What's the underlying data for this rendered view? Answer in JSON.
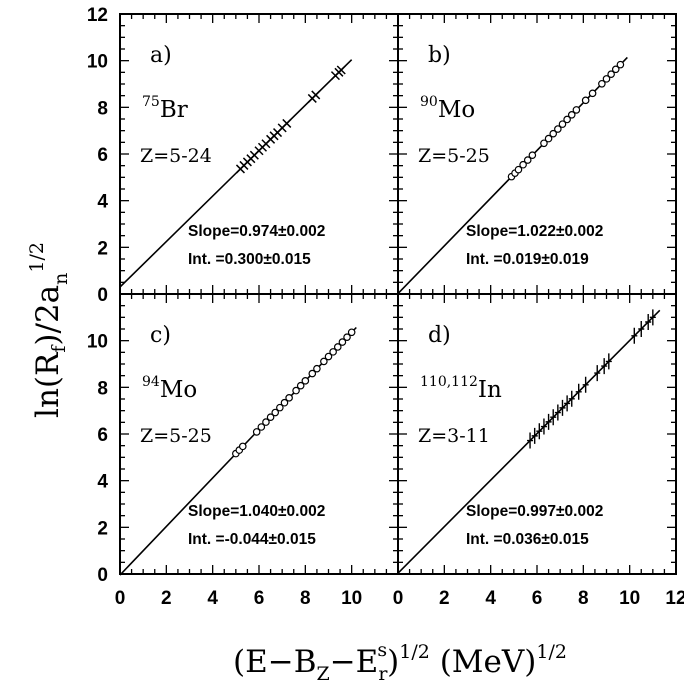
{
  "chart_data": {
    "type": "scatter",
    "layout": "2x2 panels sharing axes",
    "xlabel": "(E−B_Z−E_r^s)^1/2 (MeV)^1/2",
    "ylabel": "ln(R_f)/2a_n^1/2",
    "x_ticks": [
      "0",
      "2",
      "4",
      "6",
      "8",
      "10",
      "12"
    ],
    "y_ticks": [
      "0",
      "2",
      "4",
      "6",
      "8",
      "10",
      "12"
    ],
    "xlim": [
      0,
      12
    ],
    "ylim": [
      0,
      12
    ],
    "grid": false,
    "panels": [
      {
        "label": "a)",
        "nucleus_mass": "75",
        "nucleus_symbol": "Br",
        "z_range": "Z=5-24",
        "slope_text": "Slope=0.974±0.002",
        "int_text": "Int.  =0.300±0.015",
        "slope": 0.974,
        "intercept": 0.3,
        "line_x": [
          0,
          10.0
        ],
        "marker": "x",
        "points": [
          [
            5.2,
            5.36
          ],
          [
            5.35,
            5.51
          ],
          [
            5.5,
            5.66
          ],
          [
            5.65,
            5.8
          ],
          [
            5.8,
            5.95
          ],
          [
            6.0,
            6.14
          ],
          [
            6.15,
            6.29
          ],
          [
            6.3,
            6.44
          ],
          [
            6.5,
            6.63
          ],
          [
            6.65,
            6.78
          ],
          [
            6.8,
            6.92
          ],
          [
            7.0,
            7.12
          ],
          [
            7.2,
            7.31
          ],
          [
            8.3,
            8.38
          ],
          [
            8.45,
            8.53
          ],
          [
            9.3,
            9.36
          ],
          [
            9.45,
            9.5
          ],
          [
            9.55,
            9.6
          ]
        ]
      },
      {
        "label": "b)",
        "nucleus_mass": "90",
        "nucleus_symbol": "Mo",
        "z_range": "Z=5-25",
        "slope_text": "Slope=1.022±0.002",
        "int_text": "Int.  =0.019±0.019",
        "slope": 1.022,
        "intercept": 0.019,
        "line_x": [
          0,
          9.9
        ],
        "marker": "o",
        "points": [
          [
            4.9,
            5.03
          ],
          [
            5.05,
            5.18
          ],
          [
            5.2,
            5.33
          ],
          [
            5.4,
            5.54
          ],
          [
            5.6,
            5.74
          ],
          [
            5.8,
            5.95
          ],
          [
            6.3,
            6.46
          ],
          [
            6.5,
            6.66
          ],
          [
            6.7,
            6.87
          ],
          [
            6.9,
            7.07
          ],
          [
            7.1,
            7.28
          ],
          [
            7.3,
            7.48
          ],
          [
            7.5,
            7.68
          ],
          [
            7.7,
            7.89
          ],
          [
            8.1,
            8.3
          ],
          [
            8.4,
            8.6
          ],
          [
            8.8,
            9.01
          ],
          [
            9.0,
            9.22
          ],
          [
            9.2,
            9.42
          ],
          [
            9.4,
            9.63
          ],
          [
            9.6,
            9.83
          ]
        ]
      },
      {
        "label": "c)",
        "nucleus_mass": "94",
        "nucleus_symbol": "Mo",
        "z_range": "Z=5-25",
        "slope_text": "Slope=1.040±0.002",
        "int_text": "Int.  =-0.044±0.015",
        "slope": 1.04,
        "intercept": -0.044,
        "line_x": [
          0,
          10.2
        ],
        "marker": "o",
        "points": [
          [
            5.0,
            5.16
          ],
          [
            5.15,
            5.31
          ],
          [
            5.3,
            5.47
          ],
          [
            5.9,
            6.09
          ],
          [
            6.1,
            6.3
          ],
          [
            6.3,
            6.51
          ],
          [
            6.5,
            6.72
          ],
          [
            6.7,
            6.92
          ],
          [
            6.9,
            7.13
          ],
          [
            7.1,
            7.34
          ],
          [
            7.3,
            7.55
          ],
          [
            7.6,
            7.86
          ],
          [
            7.8,
            8.07
          ],
          [
            8.0,
            8.28
          ],
          [
            8.3,
            8.59
          ],
          [
            8.5,
            8.8
          ],
          [
            8.8,
            9.11
          ],
          [
            9.0,
            9.32
          ],
          [
            9.2,
            9.52
          ],
          [
            9.4,
            9.73
          ],
          [
            9.6,
            9.94
          ],
          [
            9.8,
            10.15
          ],
          [
            10.0,
            10.36
          ]
        ]
      },
      {
        "label": "d)",
        "nucleus_mass": "110,112",
        "nucleus_symbol": "In",
        "z_range": "Z=3-11",
        "slope_text": "Slope=0.997±0.002",
        "int_text": "Int.  =0.036±0.015",
        "slope": 0.997,
        "intercept": 0.036,
        "line_x": [
          0,
          11.3
        ],
        "marker": "+",
        "points": [
          [
            5.7,
            5.72
          ],
          [
            5.9,
            5.92
          ],
          [
            6.1,
            6.12
          ],
          [
            6.3,
            6.32
          ],
          [
            6.5,
            6.52
          ],
          [
            6.7,
            6.72
          ],
          [
            6.9,
            6.92
          ],
          [
            7.1,
            7.12
          ],
          [
            7.3,
            7.31
          ],
          [
            7.5,
            7.51
          ],
          [
            7.8,
            7.81
          ],
          [
            8.1,
            8.11
          ],
          [
            8.6,
            8.61
          ],
          [
            8.9,
            8.91
          ],
          [
            9.1,
            9.11
          ],
          [
            10.2,
            10.21
          ],
          [
            10.5,
            10.5
          ],
          [
            10.8,
            10.8
          ],
          [
            11.0,
            11.0
          ]
        ]
      }
    ]
  }
}
